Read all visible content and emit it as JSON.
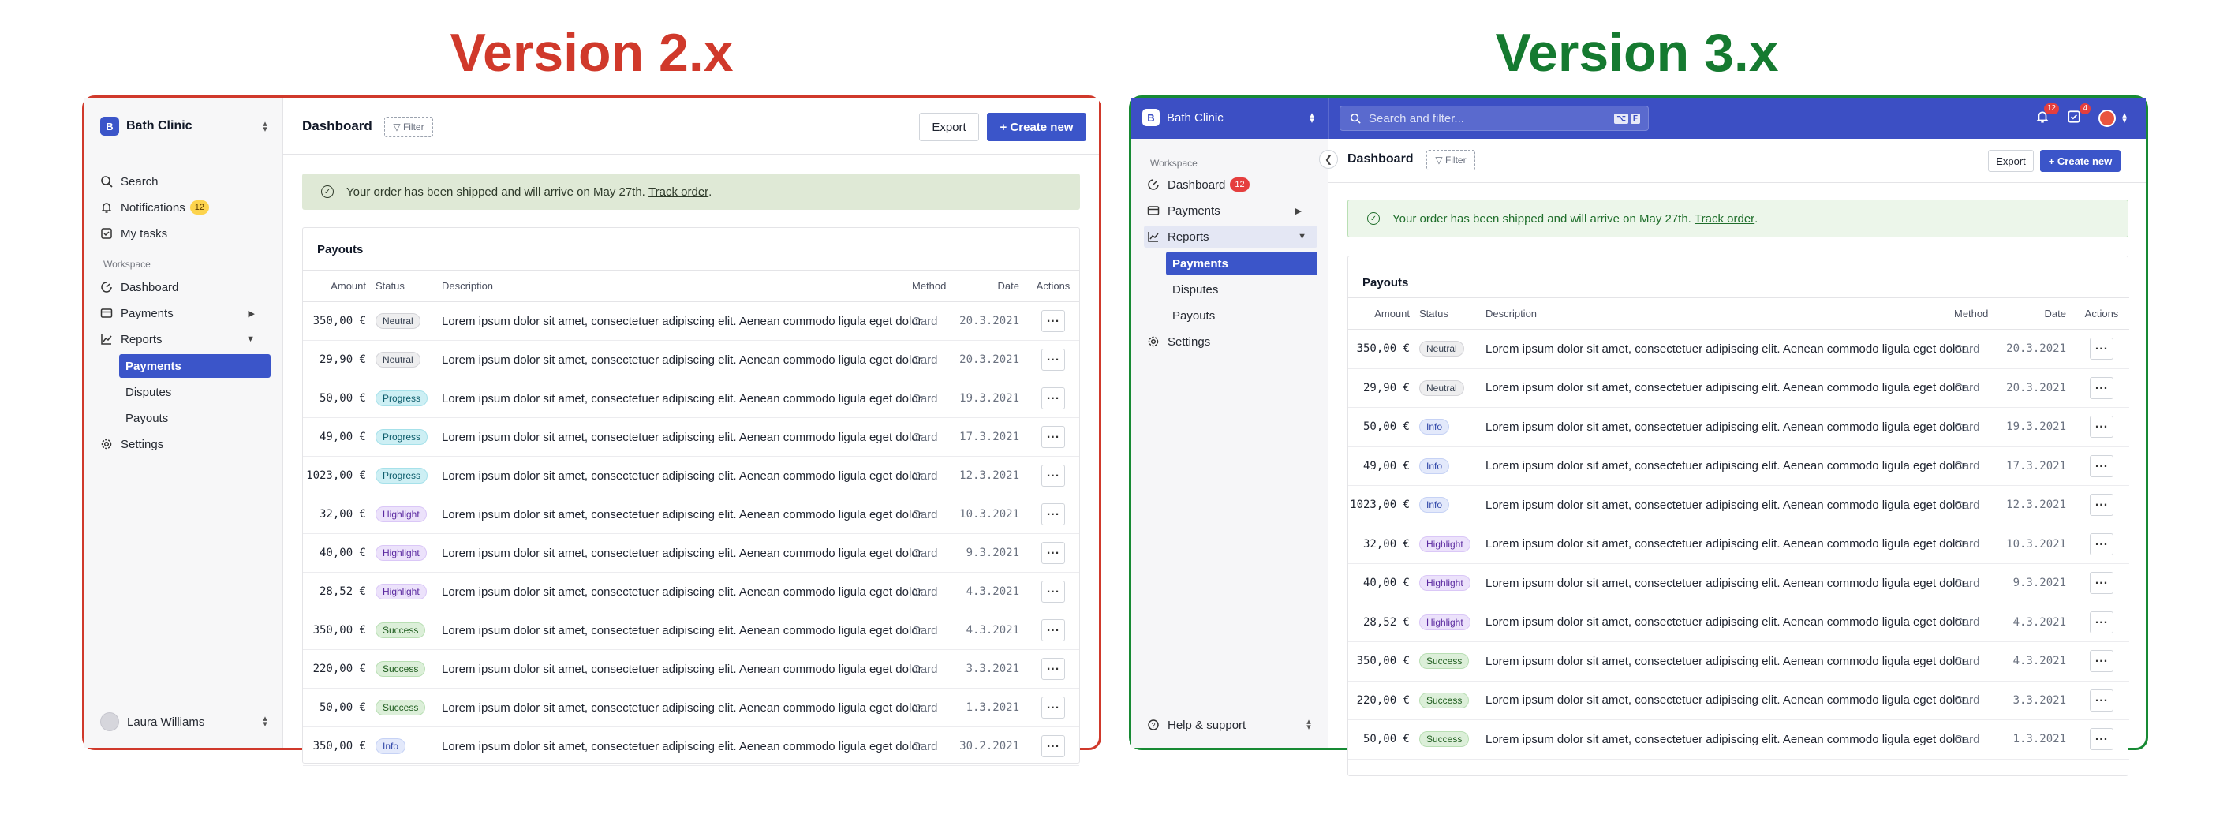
{
  "v2": {
    "heading": "Version 2.x",
    "org_badge": "B",
    "org_name": "Bath Clinic",
    "nav": {
      "search": "Search",
      "notifications": "Notifications",
      "notifications_count": "12",
      "my_tasks": "My tasks"
    },
    "workspace_label": "Workspace",
    "workspace": {
      "dashboard": "Dashboard",
      "payments": "Payments",
      "reports": "Reports"
    },
    "reports_sub": [
      "Payments",
      "Disputes",
      "Payouts"
    ],
    "settings": "Settings",
    "user_name": "Laura Williams",
    "page_title": "Dashboard",
    "filter_label": "▽ Filter",
    "export_label": "Export",
    "create_label": "+ Create new",
    "alert_text": "Your order has been shipped and will arrive on May 27th.",
    "alert_link": "Track order",
    "alert_end": ".",
    "card_title": "Payouts",
    "columns": {
      "amount": "Amount",
      "status": "Status",
      "description": "Description",
      "method": "Method",
      "date": "Date",
      "actions": "Actions"
    },
    "rows": [
      {
        "amount": "350,00 €",
        "status": "Neutral",
        "desc": "Lorem ipsum dolor sit amet, consectetuer adipiscing elit. Aenean commodo ligula eget dolor",
        "method": "Card",
        "date": "20.3.2021"
      },
      {
        "amount": "29,90 €",
        "status": "Neutral",
        "desc": "Lorem ipsum dolor sit amet, consectetuer adipiscing elit. Aenean commodo ligula eget dolor",
        "method": "Card",
        "date": "20.3.2021"
      },
      {
        "amount": "50,00 €",
        "status": "Progress",
        "desc": "Lorem ipsum dolor sit amet, consectetuer adipiscing elit. Aenean commodo ligula eget dolor",
        "method": "Card",
        "date": "19.3.2021"
      },
      {
        "amount": "49,00 €",
        "status": "Progress",
        "desc": "Lorem ipsum dolor sit amet, consectetuer adipiscing elit. Aenean commodo ligula eget dolor",
        "method": "Card",
        "date": "17.3.2021"
      },
      {
        "amount": "1023,00 €",
        "status": "Progress",
        "desc": "Lorem ipsum dolor sit amet, consectetuer adipiscing elit. Aenean commodo ligula eget dolor",
        "method": "Card",
        "date": "12.3.2021"
      },
      {
        "amount": "32,00 €",
        "status": "Highlight",
        "desc": "Lorem ipsum dolor sit amet, consectetuer adipiscing elit. Aenean commodo ligula eget dolor",
        "method": "Card",
        "date": "10.3.2021"
      },
      {
        "amount": "40,00 €",
        "status": "Highlight",
        "desc": "Lorem ipsum dolor sit amet, consectetuer adipiscing elit. Aenean commodo ligula eget dolor",
        "method": "Card",
        "date": "9.3.2021"
      },
      {
        "amount": "28,52 €",
        "status": "Highlight",
        "desc": "Lorem ipsum dolor sit amet, consectetuer adipiscing elit. Aenean commodo ligula eget dolor",
        "method": "Card",
        "date": "4.3.2021"
      },
      {
        "amount": "350,00 €",
        "status": "Success",
        "desc": "Lorem ipsum dolor sit amet, consectetuer adipiscing elit. Aenean commodo ligula eget dolor",
        "method": "Card",
        "date": "4.3.2021"
      },
      {
        "amount": "220,00 €",
        "status": "Success",
        "desc": "Lorem ipsum dolor sit amet, consectetuer adipiscing elit. Aenean commodo ligula eget dolor",
        "method": "Card",
        "date": "3.3.2021"
      },
      {
        "amount": "50,00 €",
        "status": "Success",
        "desc": "Lorem ipsum dolor sit amet, consectetuer adipiscing elit. Aenean commodo ligula eget dolor",
        "method": "Card",
        "date": "1.3.2021"
      },
      {
        "amount": "350,00 €",
        "status": "Info",
        "desc": "Lorem ipsum dolor sit amet, consectetuer adipiscing elit. Aenean commodo ligula eget dolor",
        "method": "Card",
        "date": "30.2.2021"
      }
    ]
  },
  "v3": {
    "heading": "Version 3.x",
    "org_badge": "B",
    "org_name": "Bath Clinic",
    "search_placeholder": "Search and filter...",
    "kbd": [
      "⌥",
      "F"
    ],
    "notif_count": "12",
    "tasks_count": "4",
    "workspace_label": "Workspace",
    "workspace": {
      "dashboard": "Dashboard",
      "dashboard_count": "12",
      "payments": "Payments",
      "reports": "Reports"
    },
    "reports_sub": [
      "Payments",
      "Disputes",
      "Payouts"
    ],
    "settings": "Settings",
    "help": "Help & support",
    "page_title": "Dashboard",
    "filter_label": "▽ Filter",
    "export_label": "Export",
    "create_label": "+ Create new",
    "alert_text": "Your order has been shipped and will arrive on May 27th.",
    "alert_link": "Track order",
    "alert_end": ".",
    "card_title": "Payouts",
    "columns": {
      "amount": "Amount",
      "status": "Status",
      "description": "Description",
      "method": "Method",
      "date": "Date",
      "actions": "Actions"
    },
    "rows": [
      {
        "amount": "350,00 €",
        "status": "Neutral",
        "desc": "Lorem ipsum dolor sit amet, consectetuer adipiscing elit. Aenean commodo ligula eget dolor",
        "method": "Card",
        "date": "20.3.2021"
      },
      {
        "amount": "29,90 €",
        "status": "Neutral",
        "desc": "Lorem ipsum dolor sit amet, consectetuer adipiscing elit. Aenean commodo ligula eget dolor",
        "method": "Card",
        "date": "20.3.2021"
      },
      {
        "amount": "50,00 €",
        "status": "Info",
        "desc": "Lorem ipsum dolor sit amet, consectetuer adipiscing elit. Aenean commodo ligula eget dolor",
        "method": "Card",
        "date": "19.3.2021"
      },
      {
        "amount": "49,00 €",
        "status": "Info",
        "desc": "Lorem ipsum dolor sit amet, consectetuer adipiscing elit. Aenean commodo ligula eget dolor",
        "method": "Card",
        "date": "17.3.2021"
      },
      {
        "amount": "1023,00 €",
        "status": "Info",
        "desc": "Lorem ipsum dolor sit amet, consectetuer adipiscing elit. Aenean commodo ligula eget dolor",
        "method": "Card",
        "date": "12.3.2021"
      },
      {
        "amount": "32,00 €",
        "status": "Highlight",
        "desc": "Lorem ipsum dolor sit amet, consectetuer adipiscing elit. Aenean commodo ligula eget dolor",
        "method": "Card",
        "date": "10.3.2021"
      },
      {
        "amount": "40,00 €",
        "status": "Highlight",
        "desc": "Lorem ipsum dolor sit amet, consectetuer adipiscing elit. Aenean commodo ligula eget dolor",
        "method": "Card",
        "date": "9.3.2021"
      },
      {
        "amount": "28,52 €",
        "status": "Highlight",
        "desc": "Lorem ipsum dolor sit amet, consectetuer adipiscing elit. Aenean commodo ligula eget dolor",
        "method": "Card",
        "date": "4.3.2021"
      },
      {
        "amount": "350,00 €",
        "status": "Success",
        "desc": "Lorem ipsum dolor sit amet, consectetuer adipiscing elit. Aenean commodo ligula eget dolor",
        "method": "Card",
        "date": "4.3.2021"
      },
      {
        "amount": "220,00 €",
        "status": "Success",
        "desc": "Lorem ipsum dolor sit amet, consectetuer adipiscing elit. Aenean commodo ligula eget dolor",
        "method": "Card",
        "date": "3.3.2021"
      },
      {
        "amount": "50,00 €",
        "status": "Success",
        "desc": "Lorem ipsum dolor sit amet, consectetuer adipiscing elit. Aenean commodo ligula eget dolor",
        "method": "Card",
        "date": "1.3.2021"
      }
    ]
  },
  "status_styles": {
    "Neutral": {
      "bg": "#eeeeef",
      "fg": "#374151",
      "border": "#d4d4d8"
    },
    "Progress": {
      "bg": "#cdeff4",
      "fg": "#0d5c6b",
      "border": "#a6e1ea"
    },
    "Highlight": {
      "bg": "#ece2fb",
      "fg": "#5b2aa0",
      "border": "#dac7f7"
    },
    "Success": {
      "bg": "#dcefd9",
      "fg": "#1f5d1f",
      "border": "#b9dfb4"
    },
    "Info": {
      "bg": "#e3e9fb",
      "fg": "#3046a8",
      "border": "#c6d2f5"
    }
  },
  "colors": {
    "v2_accent": "#d0392b",
    "v3_accent": "#157a30",
    "primary": "#3b55c9",
    "topbar": "#3c4fc4"
  }
}
